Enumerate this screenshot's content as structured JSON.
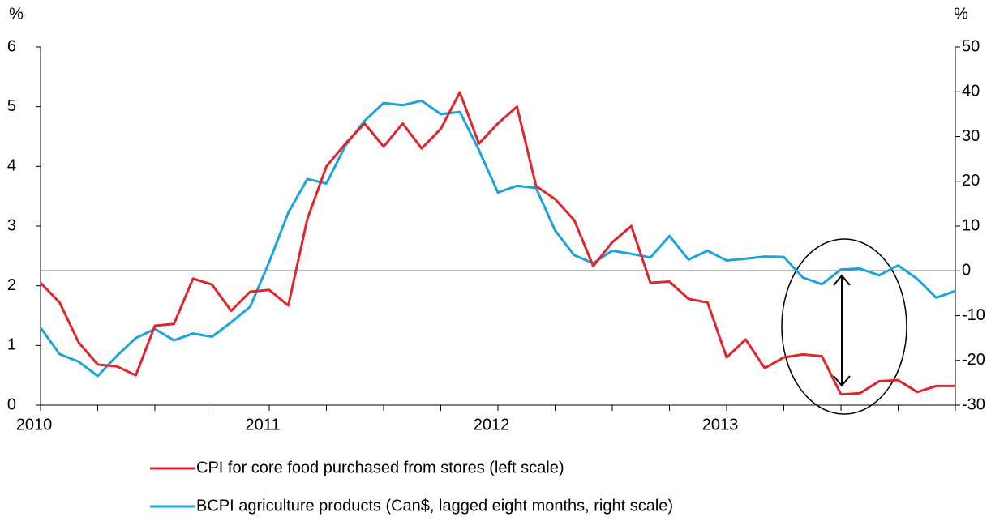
{
  "chart_data": {
    "type": "line",
    "y_label": "%",
    "y2_label": "%",
    "categories": [
      "2010",
      null,
      null,
      null,
      null,
      null,
      null,
      null,
      null,
      null,
      null,
      null,
      "2011",
      null,
      null,
      null,
      null,
      null,
      null,
      null,
      null,
      null,
      null,
      null,
      "2012",
      null,
      null,
      null,
      null,
      null,
      null,
      null,
      null,
      null,
      null,
      null,
      "2013",
      null,
      null,
      null,
      null,
      null,
      null,
      null,
      null,
      null,
      null,
      null,
      null
    ],
    "series": [
      {
        "name": "CPI for core food purchased from stores (left scale)",
        "color": "#e0262b",
        "values": [
          2.05,
          1.72,
          1.05,
          0.68,
          0.65,
          0.5,
          1.33,
          1.36,
          2.12,
          2.02,
          1.58,
          1.9,
          1.93,
          1.67,
          3.12,
          4.0,
          4.38,
          4.72,
          4.33,
          4.72,
          4.3,
          4.63,
          5.24,
          4.38,
          4.72,
          5.0,
          3.67,
          3.45,
          3.1,
          2.33,
          2.73,
          3.0,
          2.05,
          2.07,
          1.78,
          1.72,
          0.8,
          1.1,
          0.62,
          0.8,
          0.85,
          0.82,
          0.18,
          0.2,
          0.4,
          0.42,
          0.22,
          0.32,
          0.32
        ]
      },
      {
        "name": "BCPI agriculture products (Can$, lagged eight months, right scale)",
        "color": "#1ba3dc",
        "axis": "y2",
        "values": [
          -12.7,
          -18.6,
          -20.3,
          -23.5,
          -19,
          -15,
          -13,
          -15.5,
          -14,
          -14.7,
          -11.5,
          -8,
          2,
          13,
          20.5,
          19.5,
          28,
          33.5,
          37.5,
          37,
          38,
          35,
          35.5,
          27,
          17.5,
          19,
          18.5,
          9,
          3.5,
          1.7,
          4.5,
          3.8,
          3,
          7.8,
          2.5,
          4.5,
          2.3,
          2.7,
          3.2,
          3.1,
          -1.5,
          -3,
          0.3,
          0.5,
          -1,
          1.2,
          -1.8,
          -6,
          -4.5
        ]
      }
    ],
    "ylim": [
      0,
      6
    ],
    "yticks": [
      0,
      1,
      2,
      3,
      4,
      5,
      6
    ],
    "y2lim": [
      -30,
      50
    ],
    "y2ticks": [
      -30,
      -20,
      -10,
      0,
      10,
      20,
      30,
      40,
      50
    ],
    "legend": "bottom"
  }
}
